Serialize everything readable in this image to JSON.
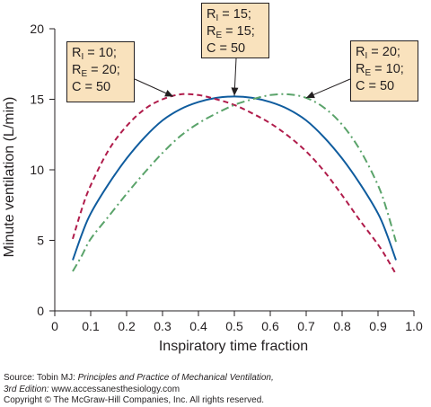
{
  "chart_data": {
    "type": "line",
    "xlabel": "Inspiratory time fraction",
    "ylabel": "Minute ventilation (L/min)",
    "xlim": [
      0,
      1.0
    ],
    "ylim": [
      0,
      20
    ],
    "x_ticks": [
      "0",
      "0.1",
      "0.2",
      "0.3",
      "0.4",
      "0.5",
      "0.6",
      "0.7",
      "0.8",
      "0.9",
      "1.0"
    ],
    "y_ticks": [
      "0",
      "5",
      "10",
      "15",
      "20"
    ],
    "grid": false,
    "series": [
      {
        "color": "#0f5c9e",
        "dash": "solid",
        "x": [
          0.05,
          0.075,
          0.1,
          0.15,
          0.2,
          0.25,
          0.3,
          0.35,
          0.4,
          0.45,
          0.5,
          0.55,
          0.6,
          0.65,
          0.7,
          0.75,
          0.8,
          0.85,
          0.9,
          0.925,
          0.95
        ],
        "y": [
          3.6,
          5.4,
          6.9,
          9.0,
          10.8,
          12.3,
          13.5,
          14.3,
          14.8,
          15.1,
          15.2,
          15.1,
          14.8,
          14.3,
          13.5,
          12.3,
          10.8,
          9.0,
          6.9,
          5.4,
          3.6
        ]
      },
      {
        "color": "#b01c4b",
        "dash": "dashed",
        "x": [
          0.05,
          0.075,
          0.1,
          0.15,
          0.2,
          0.25,
          0.3,
          0.35,
          0.4,
          0.45,
          0.5,
          0.55,
          0.6,
          0.65,
          0.7,
          0.75,
          0.8,
          0.85,
          0.9,
          0.925,
          0.95
        ],
        "y": [
          5.1,
          7.2,
          8.9,
          11.4,
          13.1,
          14.3,
          15.0,
          15.35,
          15.3,
          15.0,
          14.6,
          14.0,
          13.3,
          12.4,
          11.3,
          9.9,
          8.2,
          6.4,
          4.7,
          3.7,
          2.6
        ]
      },
      {
        "color": "#5aa36a",
        "dash": "dashdot",
        "x": [
          0.05,
          0.075,
          0.1,
          0.15,
          0.2,
          0.25,
          0.3,
          0.35,
          0.4,
          0.45,
          0.5,
          0.55,
          0.6,
          0.65,
          0.7,
          0.75,
          0.8,
          0.85,
          0.9,
          0.925,
          0.95
        ],
        "y": [
          2.8,
          3.9,
          5.1,
          6.7,
          8.3,
          9.8,
          11.2,
          12.4,
          13.3,
          14.0,
          14.6,
          15.0,
          15.3,
          15.35,
          15.1,
          14.4,
          13.2,
          11.4,
          8.9,
          7.1,
          4.9
        ]
      }
    ],
    "annotations": [
      {
        "lines": [
          [
            "R",
            "I",
            " = 10;"
          ],
          [
            "R",
            "E",
            " = 20;"
          ],
          [
            "C = 50"
          ]
        ],
        "target_series": 1
      },
      {
        "lines": [
          [
            "R",
            "I",
            " = 15;"
          ],
          [
            "R",
            "E",
            " = 15;"
          ],
          [
            "C = 50"
          ]
        ],
        "target_series": 0
      },
      {
        "lines": [
          [
            "R",
            "I",
            " = 20;"
          ],
          [
            "R",
            "E",
            " = 10;"
          ],
          [
            "C = 50"
          ]
        ],
        "target_series": 2
      }
    ]
  },
  "credits": {
    "source_prefix": "Source: Tobin MJ: ",
    "source_title": "Principles and Practice of Mechanical Ventilation,",
    "edition": "3rd Edition:",
    "url": " www.accessanesthesiology.com",
    "copyright": "Copyright © The McGraw-Hill Companies, Inc. All rights reserved."
  }
}
